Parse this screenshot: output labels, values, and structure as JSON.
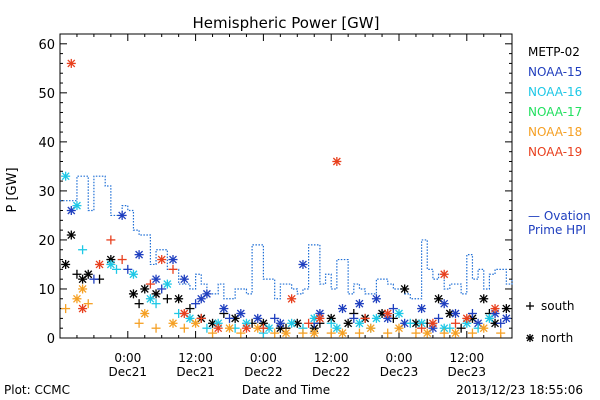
{
  "chart_data": {
    "type": "scatter",
    "title": "Hemispheric Power [GW]",
    "ylabel": "P [GW]",
    "xlabel": "Date and Time",
    "ylim": [
      0,
      62
    ],
    "xlim": [
      -12,
      68
    ],
    "yticks": [
      0,
      10,
      20,
      30,
      40,
      50,
      60
    ],
    "x_units": "hours since 2013-12-21 00:00",
    "xticks": [
      {
        "x": 0,
        "time": "0:00",
        "date": "Dec21"
      },
      {
        "x": 12,
        "time": "12:00",
        "date": "Dec21"
      },
      {
        "x": 24,
        "time": "0:00",
        "date": "Dec22"
      },
      {
        "x": 36,
        "time": "12:00",
        "date": "Dec22"
      },
      {
        "x": 48,
        "time": "0:00",
        "date": "Dec23"
      },
      {
        "x": 60,
        "time": "12:00",
        "date": "Dec23"
      }
    ],
    "legend": [
      {
        "name": "METP-02",
        "color": "#000000"
      },
      {
        "name": "NOAA-15",
        "color": "#1f3fbf"
      },
      {
        "name": "NOAA-16",
        "color": "#1ec8e6"
      },
      {
        "name": "NOAA-17",
        "color": "#22e060"
      },
      {
        "name": "NOAA-18",
        "color": "#f5a024"
      },
      {
        "name": "NOAA-19",
        "color": "#e8401e"
      }
    ],
    "ovation_label": [
      "— Ovation",
      "Prime HPI"
    ],
    "marker_legend": [
      {
        "symbol": "+",
        "label": "south"
      },
      {
        "symbol": "*",
        "label": "north"
      }
    ],
    "ovation": {
      "name": "Ovation Prime HPI",
      "color": "#1f6fd6",
      "x": [
        -12,
        -9,
        -7,
        -6,
        -4,
        -3,
        -1,
        0,
        1,
        2,
        4,
        5,
        7,
        9,
        11,
        12,
        13,
        14,
        16,
        17,
        19,
        21,
        22,
        24,
        26,
        27,
        29,
        30,
        31,
        32,
        34,
        35,
        36,
        37,
        39,
        40,
        41,
        42,
        44,
        46,
        47,
        49,
        50,
        52,
        53,
        54,
        55,
        56,
        57,
        59,
        60,
        61,
        62,
        63,
        64,
        65,
        67,
        68
      ],
      "y": [
        28,
        33,
        26,
        33,
        31,
        25,
        27,
        26,
        22,
        21,
        15,
        18,
        14,
        11,
        10,
        13,
        11,
        9,
        11,
        8,
        10,
        9,
        19,
        12,
        8,
        11,
        10,
        9,
        10,
        19,
        11,
        13,
        10,
        16,
        9,
        11,
        10,
        9,
        12,
        11,
        10,
        9,
        8,
        20,
        14,
        12,
        13,
        10,
        11,
        9,
        17,
        12,
        14,
        10,
        13,
        14,
        11,
        12
      ]
    },
    "series": [
      {
        "name": "METP-02",
        "color": "#000000",
        "north": [
          [
            -11,
            15
          ],
          [
            -10,
            21
          ],
          [
            -8,
            12
          ],
          [
            -7,
            13
          ],
          [
            -3,
            16
          ],
          [
            1,
            9
          ],
          [
            3,
            10
          ],
          [
            5,
            9
          ],
          [
            9,
            8
          ],
          [
            13,
            4
          ],
          [
            15,
            3
          ],
          [
            19,
            4
          ],
          [
            24,
            3
          ],
          [
            27,
            2
          ],
          [
            30,
            3
          ],
          [
            33,
            2
          ],
          [
            36,
            4
          ],
          [
            39,
            3
          ],
          [
            42,
            4
          ],
          [
            45,
            5
          ],
          [
            49,
            10
          ],
          [
            51,
            3
          ],
          [
            55,
            8
          ],
          [
            57,
            5
          ],
          [
            61,
            4
          ],
          [
            63,
            8
          ],
          [
            65,
            3
          ],
          [
            67,
            6
          ]
        ],
        "south": [
          [
            -9,
            13
          ],
          [
            -5,
            12
          ],
          [
            2,
            7
          ],
          [
            7,
            8
          ],
          [
            11,
            6
          ],
          [
            17,
            5
          ],
          [
            22,
            3
          ],
          [
            28,
            2
          ],
          [
            34,
            3
          ],
          [
            40,
            5
          ],
          [
            47,
            4
          ],
          [
            53,
            3
          ],
          [
            59,
            2
          ],
          [
            64,
            5
          ]
        ]
      },
      {
        "name": "NOAA-15",
        "color": "#1f3fbf",
        "north": [
          [
            -10,
            26
          ],
          [
            -1,
            25
          ],
          [
            2,
            17
          ],
          [
            5,
            12
          ],
          [
            8,
            16
          ],
          [
            10,
            12
          ],
          [
            13,
            8
          ],
          [
            14,
            9
          ],
          [
            17,
            6
          ],
          [
            20,
            5
          ],
          [
            23,
            4
          ],
          [
            27,
            3
          ],
          [
            31,
            15
          ],
          [
            34,
            5
          ],
          [
            38,
            6
          ],
          [
            41,
            7
          ],
          [
            44,
            8
          ],
          [
            46,
            4
          ],
          [
            49,
            3
          ],
          [
            52,
            6
          ],
          [
            54,
            2
          ],
          [
            56,
            7
          ],
          [
            58,
            5
          ],
          [
            62,
            3
          ],
          [
            65,
            5
          ],
          [
            67,
            4
          ]
        ],
        "south": [
          [
            -6,
            12
          ],
          [
            0,
            14
          ],
          [
            6,
            10
          ],
          [
            12,
            7
          ],
          [
            18,
            4
          ],
          [
            26,
            4
          ],
          [
            33,
            3
          ],
          [
            40,
            4
          ],
          [
            47,
            6
          ],
          [
            55,
            4
          ],
          [
            61,
            5
          ],
          [
            66,
            3
          ]
        ]
      },
      {
        "name": "NOAA-16",
        "color": "#1ec8e6",
        "north": [
          [
            -11,
            33
          ],
          [
            -9,
            27
          ],
          [
            -3,
            15
          ],
          [
            1,
            13
          ],
          [
            4,
            8
          ],
          [
            7,
            11
          ],
          [
            11,
            4
          ],
          [
            16,
            3
          ],
          [
            21,
            3
          ],
          [
            25,
            2
          ],
          [
            29,
            3
          ],
          [
            33,
            4
          ],
          [
            37,
            2
          ],
          [
            41,
            3
          ],
          [
            44,
            4
          ],
          [
            48,
            5
          ],
          [
            52,
            3
          ],
          [
            56,
            2
          ],
          [
            60,
            3
          ],
          [
            64,
            4
          ]
        ],
        "south": [
          [
            -8,
            18
          ],
          [
            -2,
            14
          ],
          [
            5,
            7
          ],
          [
            9,
            5
          ],
          [
            14,
            2
          ],
          [
            19,
            2
          ],
          [
            24,
            1
          ],
          [
            31,
            2
          ],
          [
            36,
            3
          ],
          [
            43,
            2
          ],
          [
            50,
            3
          ],
          [
            57,
            2
          ],
          [
            62,
            2
          ]
        ]
      },
      {
        "name": "NOAA-18",
        "color": "#f5a024",
        "north": [
          [
            -9,
            8
          ],
          [
            -8,
            10
          ],
          [
            3,
            5
          ],
          [
            8,
            3
          ],
          [
            12,
            3
          ],
          [
            18,
            2
          ],
          [
            23,
            2
          ],
          [
            28,
            1
          ],
          [
            33,
            1
          ],
          [
            38,
            1
          ],
          [
            43,
            2
          ],
          [
            48,
            2
          ],
          [
            53,
            1
          ],
          [
            58,
            1
          ],
          [
            63,
            2
          ]
        ],
        "south": [
          [
            -11,
            6
          ],
          [
            -7,
            7
          ],
          [
            2,
            3
          ],
          [
            5,
            2
          ],
          [
            10,
            2
          ],
          [
            15,
            1
          ],
          [
            20,
            1
          ],
          [
            26,
            1
          ],
          [
            31,
            1
          ],
          [
            36,
            1
          ],
          [
            41,
            1
          ],
          [
            46,
            1
          ],
          [
            51,
            1
          ],
          [
            56,
            1
          ],
          [
            61,
            1
          ],
          [
            66,
            1
          ]
        ]
      },
      {
        "name": "NOAA-19",
        "color": "#e8401e",
        "north": [
          [
            -10,
            56
          ],
          [
            -8,
            6
          ],
          [
            -5,
            15
          ],
          [
            6,
            16
          ],
          [
            10,
            5
          ],
          [
            16,
            2
          ],
          [
            21,
            2
          ],
          [
            29,
            8
          ],
          [
            34,
            4
          ],
          [
            37,
            36
          ],
          [
            46,
            5
          ],
          [
            54,
            3
          ],
          [
            56,
            13
          ],
          [
            60,
            4
          ],
          [
            65,
            6
          ]
        ],
        "south": [
          [
            -3,
            20
          ],
          [
            -1,
            16
          ],
          [
            4,
            11
          ],
          [
            8,
            14
          ],
          [
            13,
            4
          ],
          [
            24,
            2
          ],
          [
            32,
            3
          ],
          [
            42,
            4
          ],
          [
            52,
            2
          ],
          [
            58,
            3
          ]
        ]
      }
    ]
  },
  "footer": {
    "left": "Plot: CCMC",
    "right": "2013/12/23 18:55:06"
  }
}
